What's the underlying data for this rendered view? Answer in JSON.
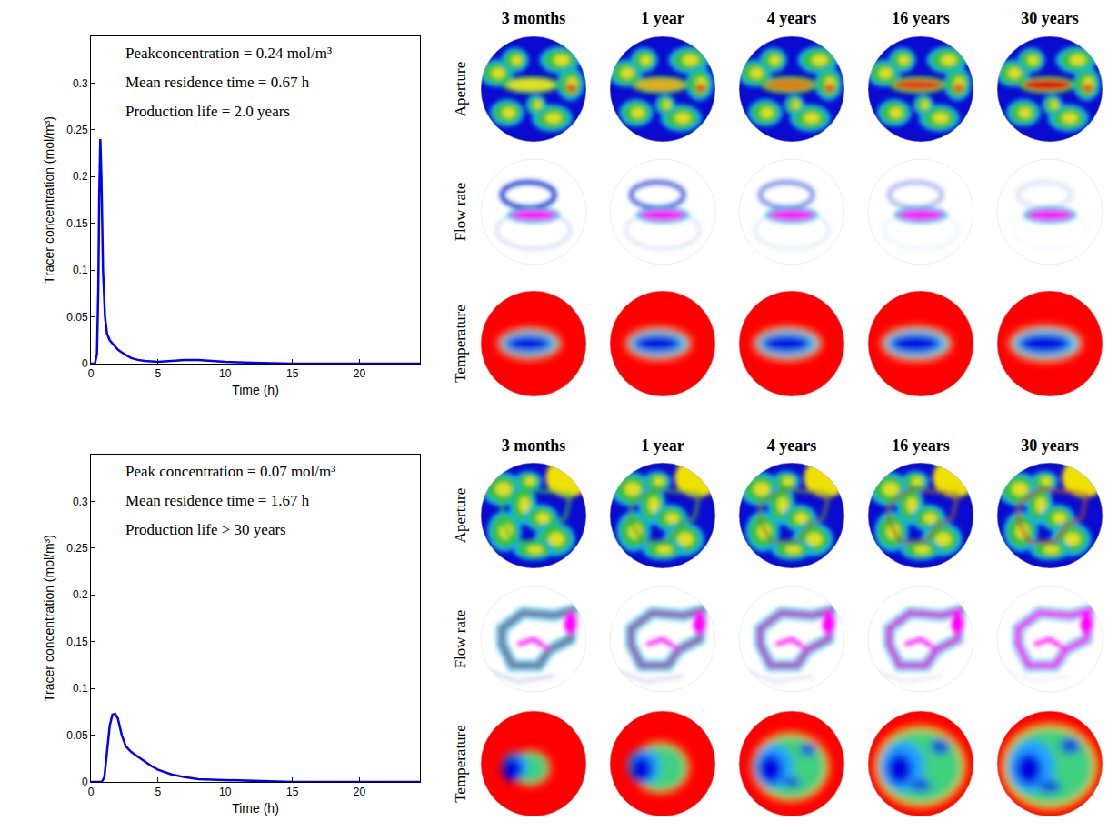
{
  "chart_data": [
    {
      "type": "line",
      "xlabel": "Time (h)",
      "ylabel": "Tracer concentration (mol/m³)",
      "x": [
        0,
        0.3,
        0.45,
        0.55,
        0.62,
        0.7,
        0.78,
        0.9,
        1.05,
        1.2,
        1.4,
        1.7,
        2,
        2.5,
        3,
        3.5,
        4,
        5,
        6,
        7,
        8,
        9,
        10,
        12,
        15,
        20,
        24.5
      ],
      "values": [
        0,
        0,
        0.01,
        0.08,
        0.18,
        0.24,
        0.2,
        0.1,
        0.05,
        0.032,
        0.025,
        0.02,
        0.015,
        0.01,
        0.006,
        0.004,
        0.003,
        0.002,
        0.003,
        0.004,
        0.004,
        0.003,
        0.002,
        0.001,
        0,
        0,
        0
      ],
      "color": "#0000ff",
      "xlim": [
        0,
        24.5
      ],
      "xticks": [
        0,
        5,
        10,
        15,
        20
      ],
      "ylim": [
        0,
        0.35
      ],
      "yticks": [
        0,
        0.05,
        0.1,
        0.15,
        0.2,
        0.25,
        0.3
      ],
      "grid": false,
      "annotations": [
        "Peakconcentration = 0.24 mol/m³",
        "Mean residence time = 0.67 h",
        "Production life = 2.0 years"
      ],
      "map_columns": [
        "3 months",
        "1 year",
        "4 years",
        "16 years",
        "30 years"
      ],
      "map_rows": [
        "Aperture",
        "Flow rate",
        "Temperature"
      ]
    },
    {
      "type": "line",
      "xlabel": "Time (h)",
      "ylabel": "Tracer concentration (mol/m³)",
      "x": [
        0,
        0.8,
        1,
        1.2,
        1.4,
        1.6,
        1.8,
        2,
        2.3,
        2.6,
        3,
        3.5,
        4,
        4.5,
        5,
        6,
        7,
        8,
        10,
        12,
        15,
        20,
        24.5
      ],
      "values": [
        0,
        0,
        0.005,
        0.03,
        0.06,
        0.072,
        0.073,
        0.068,
        0.05,
        0.038,
        0.032,
        0.027,
        0.022,
        0.017,
        0.013,
        0.008,
        0.005,
        0.003,
        0.002,
        0.001,
        0,
        0,
        0
      ],
      "color": "#0000ff",
      "xlim": [
        0,
        24.5
      ],
      "xticks": [
        0,
        5,
        10,
        15,
        20
      ],
      "ylim": [
        0,
        0.35
      ],
      "yticks": [
        0,
        0.05,
        0.1,
        0.15,
        0.2,
        0.25,
        0.3
      ],
      "grid": false,
      "annotations": [
        "Peak concentration = 0.07 mol/m³",
        "Mean residence time = 1.67 h",
        "Production life > 30 years"
      ],
      "map_columns": [
        "3 months",
        "1 year",
        "4 years",
        "16 years",
        "30 years"
      ],
      "map_rows": [
        "Aperture",
        "Flow rate",
        "Temperature"
      ]
    }
  ]
}
